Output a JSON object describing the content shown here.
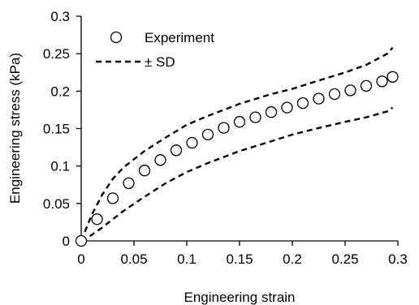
{
  "chart_data": {
    "type": "scatter",
    "xlabel": "Engineering strain",
    "ylabel": "Engineering stress (kPa)",
    "xlim": [
      0,
      0.3
    ],
    "ylim": [
      0,
      0.3
    ],
    "x_ticks": [
      "0",
      "0.05",
      "0.1",
      "0.15",
      "0.2",
      "0.25",
      "0.3"
    ],
    "y_ticks": [
      "0",
      "0.05",
      "0.1",
      "0.15",
      "0.2",
      "0.25",
      "0.3"
    ],
    "grid": false,
    "legend_position": "top-left",
    "series": [
      {
        "name": "Experiment",
        "style": "open-circle",
        "x": [
          0,
          0.015,
          0.03,
          0.045,
          0.06,
          0.075,
          0.09,
          0.105,
          0.12,
          0.135,
          0.15,
          0.165,
          0.18,
          0.195,
          0.21,
          0.225,
          0.24,
          0.255,
          0.27,
          0.285,
          0.295
        ],
        "y": [
          0,
          0.029,
          0.057,
          0.077,
          0.094,
          0.108,
          0.121,
          0.131,
          0.142,
          0.151,
          0.159,
          0.165,
          0.172,
          0.178,
          0.184,
          0.19,
          0.196,
          0.201,
          0.207,
          0.213,
          0.219
        ]
      },
      {
        "name": "± SD",
        "style": "dashed",
        "lines": [
          {
            "x": [
              0,
              0.01,
              0.02,
              0.03,
              0.04,
              0.06,
              0.08,
              0.1,
              0.12,
              0.15,
              0.18,
              0.2,
              0.22,
              0.25,
              0.27,
              0.29,
              0.295
            ],
            "y": [
              0,
              0.035,
              0.062,
              0.083,
              0.098,
              0.12,
              0.138,
              0.155,
              0.167,
              0.183,
              0.196,
              0.203,
              0.212,
              0.225,
              0.235,
              0.25,
              0.258
            ]
          },
          {
            "x": [
              0,
              0.01,
              0.02,
              0.03,
              0.04,
              0.06,
              0.08,
              0.1,
              0.12,
              0.15,
              0.18,
              0.2,
              0.22,
              0.25,
              0.27,
              0.29,
              0.295
            ],
            "y": [
              0,
              0.008,
              0.018,
              0.029,
              0.04,
              0.059,
              0.077,
              0.092,
              0.104,
              0.12,
              0.133,
              0.142,
              0.149,
              0.159,
              0.165,
              0.173,
              0.178
            ]
          }
        ]
      }
    ]
  }
}
